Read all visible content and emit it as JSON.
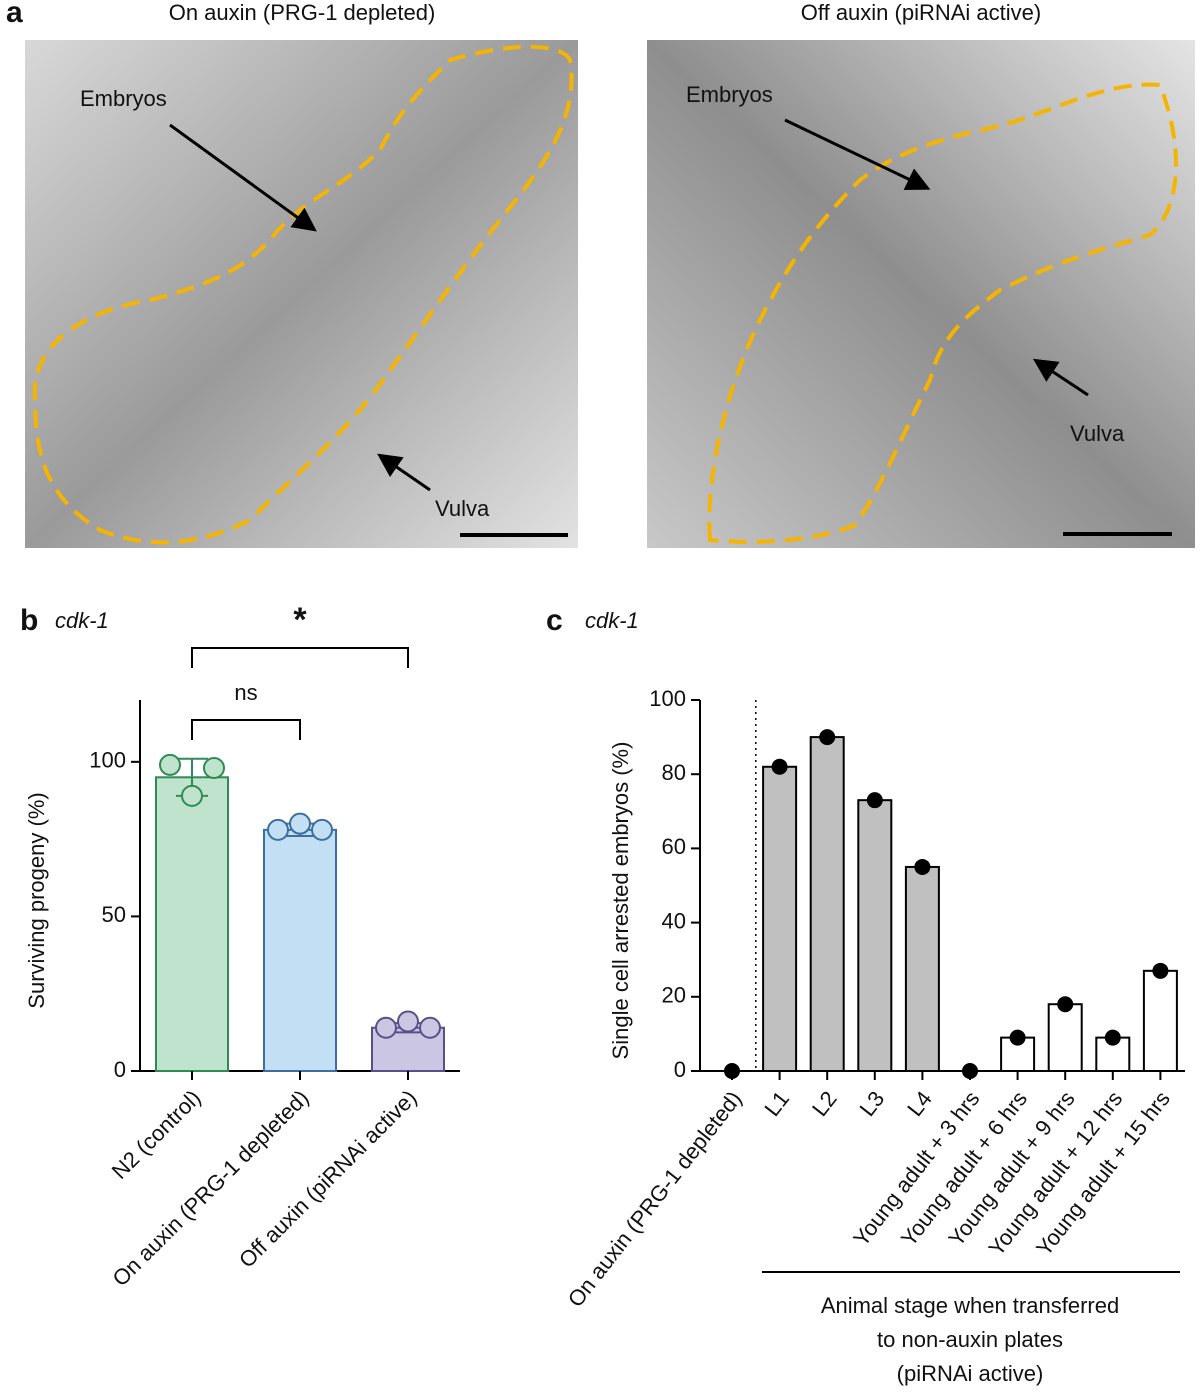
{
  "panel_a": {
    "label": "a",
    "images": [
      {
        "title": "On auxin (PRG-1 depleted)",
        "annotations": [
          "Embryos",
          "Vulva"
        ]
      },
      {
        "title": "Off auxin (piRNAi active)",
        "annotations": [
          "Embryos",
          "Vulva"
        ]
      }
    ]
  },
  "chart_data": [
    {
      "type": "bar",
      "panel_label": "b",
      "title": "cdk-1",
      "ylabel": "Surviving progeny (%)",
      "categories": [
        "N2 (control)",
        "On auxin (PRG-1 depleted)",
        "Off auxin (piRNAi active)"
      ],
      "values": [
        95,
        78,
        14
      ],
      "errors": [
        6,
        2,
        1.5
      ],
      "points": [
        [
          99,
          89,
          98
        ],
        [
          78,
          80,
          78
        ],
        [
          14,
          16,
          14
        ]
      ],
      "colors": [
        "#bfe3cc",
        "#c2dff3",
        "#cbc6e2"
      ],
      "edge_colors": [
        "#2e8b57",
        "#3a6fa0",
        "#5a4f8a"
      ],
      "ylim": [
        0,
        120
      ],
      "yticks": [
        0,
        50,
        100
      ],
      "significance": [
        {
          "from": 0,
          "to": 1,
          "label": "ns"
        },
        {
          "from": 0,
          "to": 2,
          "label": "*"
        }
      ]
    },
    {
      "type": "bar",
      "panel_label": "c",
      "title": "cdk-1",
      "ylabel": "Single cell arrested embryos (%)",
      "categories": [
        "On auxin (PRG-1 depleted)",
        "L1",
        "L2",
        "L3",
        "L4",
        "Young adult + 3 hrs",
        "Young adult + 6 hrs",
        "Young adult + 9 hrs",
        "Young adult + 12 hrs",
        "Young adult + 15 hrs"
      ],
      "values": [
        0,
        82,
        90,
        73,
        55,
        0,
        9,
        18,
        9,
        27
      ],
      "colors": [
        "#c0c0c0",
        "#c0c0c0",
        "#c0c0c0",
        "#c0c0c0",
        "#c0c0c0",
        "#ffffff",
        "#ffffff",
        "#ffffff",
        "#ffffff",
        "#ffffff"
      ],
      "edge_color": "#000000",
      "point_color": "#000000",
      "ylim": [
        0,
        100
      ],
      "yticks": [
        0,
        20,
        40,
        60,
        80,
        100
      ],
      "group_label": [
        "Animal stage when transferred",
        "to non-auxin plates",
        "(piRNAi active)"
      ]
    }
  ]
}
